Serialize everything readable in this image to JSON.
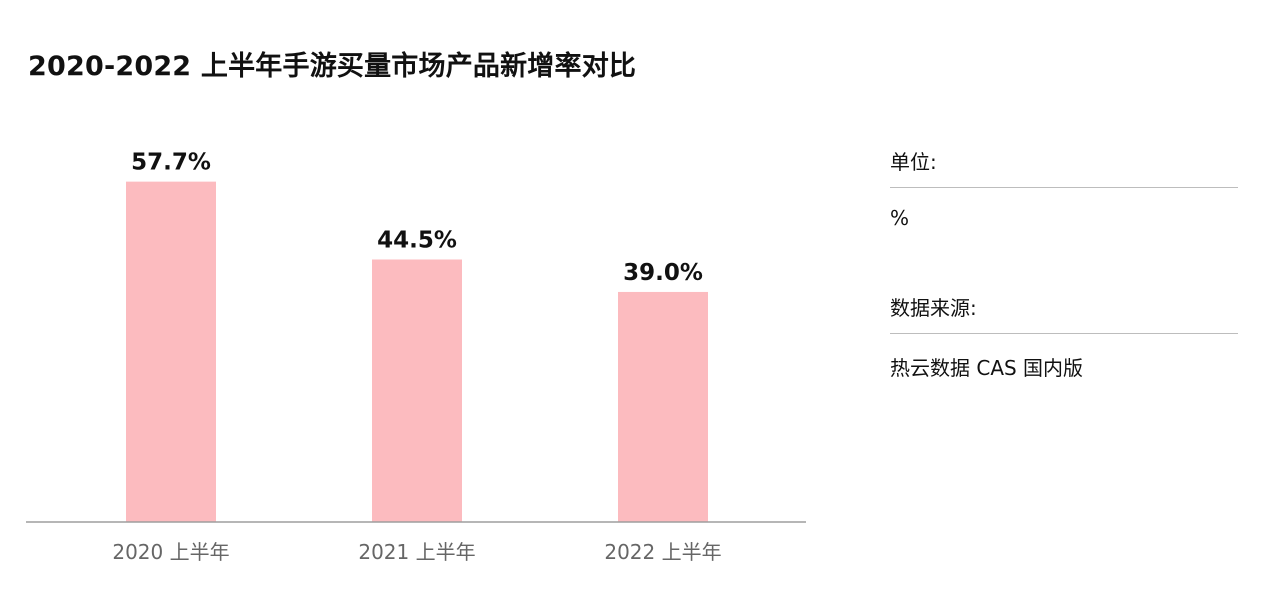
{
  "title": "2020-2022 上半年手游买量市场产品新增率对比",
  "chart_data": {
    "type": "bar",
    "title": "2020-2022 上半年手游买量市场产品新增率对比",
    "categories": [
      "2020 上半年",
      "2021 上半年",
      "2022 上半年"
    ],
    "values": [
      57.7,
      44.5,
      39.0
    ],
    "value_labels": [
      "57.7%",
      "44.5%",
      "39.0%"
    ],
    "xlabel": "",
    "ylabel": "",
    "ylim": [
      0,
      61.2
    ],
    "grid": false,
    "bar_color": "#fcbbbf",
    "axis_color": "#9e9e9e"
  },
  "legend": {
    "unit_label": "单位:",
    "unit_value": "%",
    "source_label": "数据来源:",
    "source_value": "热云数据 CAS 国内版"
  }
}
